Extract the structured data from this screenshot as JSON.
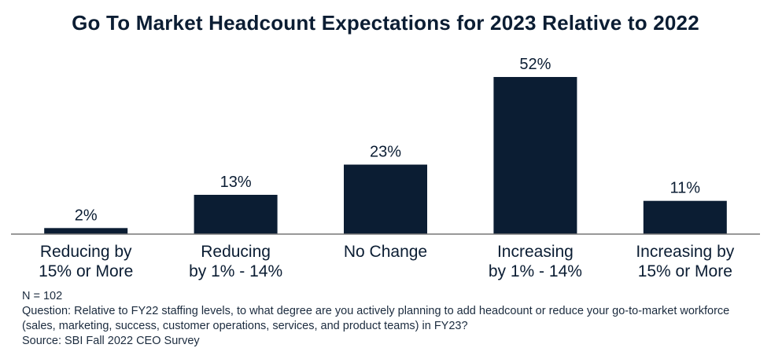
{
  "chart_data": {
    "type": "bar",
    "title": "Go To Market Headcount Expectations for 2023 Relative to 2022",
    "categories": [
      [
        "Reducing by",
        "15% or More"
      ],
      [
        "Reducing",
        "by 1% - 14%"
      ],
      [
        "No Change"
      ],
      [
        "Increasing",
        "by 1% - 14%"
      ],
      [
        "Increasing by",
        "15% or More"
      ]
    ],
    "values": [
      2,
      13,
      23,
      52,
      11
    ],
    "data_labels": [
      "2%",
      "13%",
      "23%",
      "52%",
      "11%"
    ],
    "ylim": [
      0,
      60
    ],
    "bar_color": "#0b1d33",
    "grid": false,
    "legend": "none"
  },
  "footnotes": {
    "n": "N = 102",
    "question": "Question: Relative to FY22 staffing levels, to what degree are you actively planning to add headcount or reduce your go-to-market workforce (sales, marketing, success, customer operations, services, and product teams) in FY23?",
    "source": "Source: SBI Fall 2022 CEO Survey"
  }
}
